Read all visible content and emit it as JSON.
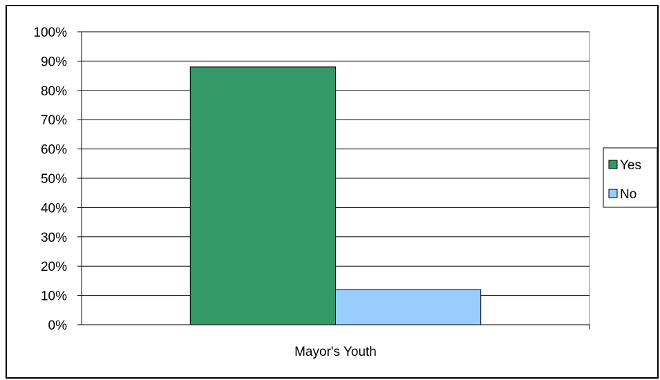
{
  "chart_data": {
    "type": "bar",
    "categories": [
      "Mayor's Youth"
    ],
    "series": [
      {
        "name": "Yes",
        "values": [
          0.88
        ],
        "color": "#339966"
      },
      {
        "name": "No",
        "values": [
          0.12
        ],
        "color": "#99CCFF"
      }
    ],
    "ylim": [
      0,
      1
    ],
    "yticks": [
      "0%",
      "10%",
      "20%",
      "30%",
      "40%",
      "50%",
      "60%",
      "70%",
      "80%",
      "90%",
      "100%"
    ],
    "grid": true,
    "legend_position": "right"
  }
}
